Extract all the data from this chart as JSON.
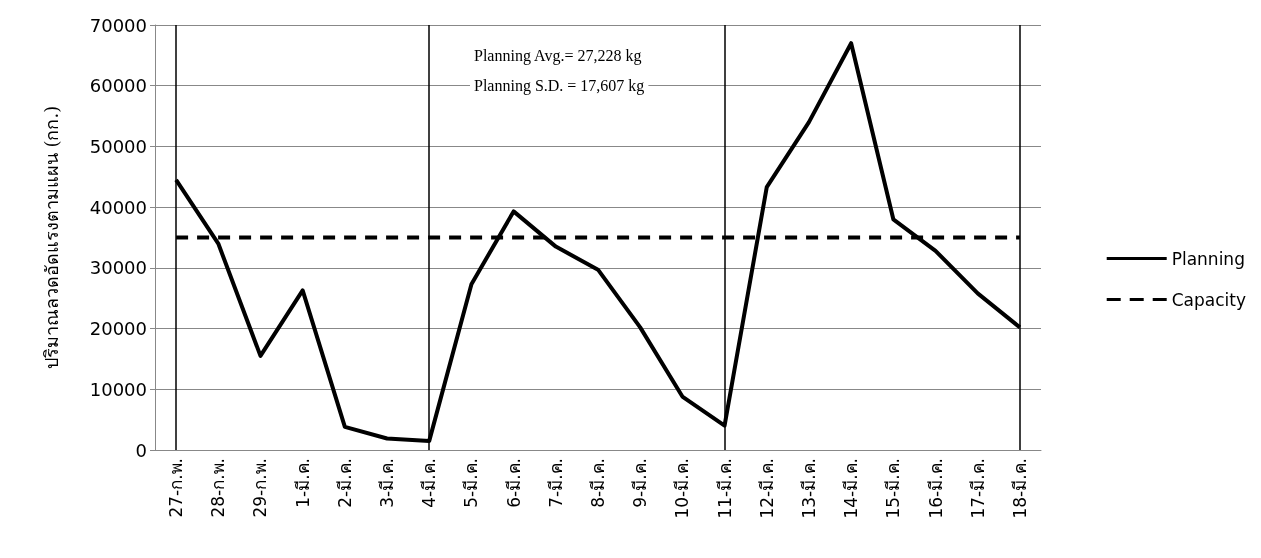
{
  "chart_data": {
    "type": "line",
    "ylabel": "ปริมาณลวดอัดแรงตามแผน (กก.)",
    "categories": [
      "27-ก.พ.",
      "28-ก.พ.",
      "29-ก.พ.",
      "1-มี.ค.",
      "2-มี.ค.",
      "3-มี.ค.",
      "4-มี.ค.",
      "5-มี.ค.",
      "6-มี.ค.",
      "7-มี.ค.",
      "8-มี.ค.",
      "9-มี.ค.",
      "10-มี.ค.",
      "11-มี.ค.",
      "12-มี.ค.",
      "13-มี.ค.",
      "14-มี.ค.",
      "15-มี.ค.",
      "16-มี.ค.",
      "17-มี.ค.",
      "18-มี.ค."
    ],
    "series": [
      {
        "name": "Planning",
        "color": "#000000",
        "line_style": "solid",
        "values": [
          44500,
          34000,
          15500,
          26300,
          3800,
          1900,
          1500,
          27300,
          39300,
          33500,
          29700,
          20200,
          8800,
          4000,
          43300,
          54000,
          67000,
          38000,
          32800,
          25800,
          20200
        ]
      },
      {
        "name": "Capacity",
        "color": "#000000",
        "line_style": "dashed",
        "values": [
          35000,
          35000,
          35000,
          35000,
          35000,
          35000,
          35000,
          35000,
          35000,
          35000,
          35000,
          35000,
          35000,
          35000,
          35000,
          35000,
          35000,
          35000,
          35000,
          35000,
          35000
        ]
      }
    ],
    "ylim": [
      0,
      70000
    ],
    "yticks": [
      0,
      10000,
      20000,
      30000,
      40000,
      50000,
      60000,
      70000
    ],
    "ref_lines": [
      {
        "axis": "x",
        "value": "27-ก.พ.",
        "color": "#000000"
      },
      {
        "axis": "x",
        "value": "4-มี.ค.",
        "color": "#000000"
      },
      {
        "axis": "x",
        "value": "11-มี.ค.",
        "color": "#000000"
      },
      {
        "axis": "x",
        "value": "18-มี.ค.",
        "color": "#000000"
      }
    ],
    "annotations": [
      "Planning Avg.= 27,228 kg",
      "Planning S.D. = 17,607 kg"
    ],
    "grid": "y",
    "legend": "right",
    "marker": "none"
  }
}
